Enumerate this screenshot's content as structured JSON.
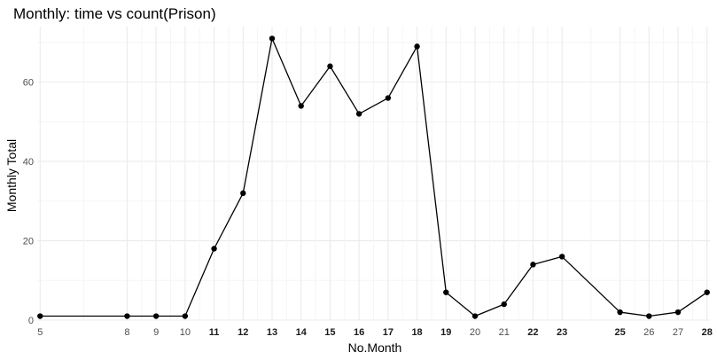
{
  "chart_data": {
    "type": "line",
    "title": "Monthly: time vs count(Prison)",
    "xlabel": "No.Month",
    "ylabel": "Monthly Total",
    "xlim": [
      4.9,
      28.1
    ],
    "ylim": [
      0,
      74
    ],
    "y_ticks": [
      0,
      20,
      40,
      60
    ],
    "x_ticks": [
      5,
      8,
      9,
      10,
      11,
      12,
      13,
      14,
      15,
      16,
      17,
      18,
      19,
      20,
      21,
      22,
      23,
      25,
      26,
      27,
      28
    ],
    "x_ticks_bold": [
      11,
      12,
      13,
      14,
      15,
      16,
      17,
      18,
      19,
      22,
      23,
      25,
      28
    ],
    "x": [
      5,
      8,
      9,
      10,
      11,
      12,
      13,
      14,
      15,
      16,
      17,
      18,
      19,
      20,
      21,
      22,
      23,
      25,
      26,
      27,
      28
    ],
    "y": [
      1,
      1,
      1,
      1,
      18,
      32,
      71,
      54,
      64,
      52,
      56,
      69,
      7,
      1,
      4,
      14,
      16,
      2,
      1,
      2,
      7
    ],
    "grid": true,
    "colors": {
      "line": "#000000",
      "point": "#000000",
      "grid_major": "#ebebeb",
      "grid_minor": "#f5f5f5",
      "background": "#ffffff"
    }
  }
}
